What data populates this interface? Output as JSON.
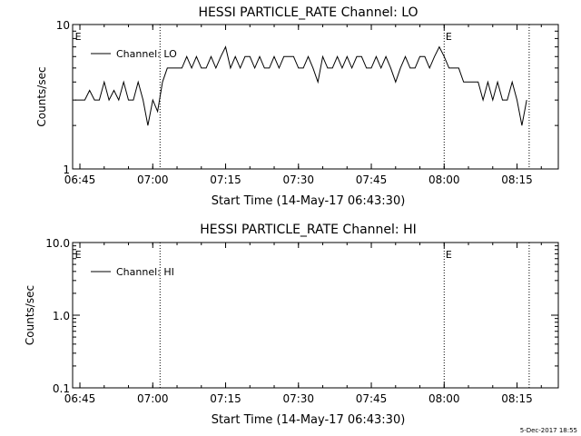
{
  "chart_data": [
    {
      "type": "line",
      "title": "HESSI PARTICLE_RATE Channel: LO",
      "xlabel": "Start Time (14-May-17 06:43:30)",
      "ylabel": "Counts/sec",
      "yscale": "log",
      "ylim": [
        1,
        10
      ],
      "y_tick_labels": [
        "1",
        "10"
      ],
      "xlim": [
        "06:43",
        "08:23"
      ],
      "x_tick_labels": [
        "06:45",
        "07:00",
        "07:15",
        "07:30",
        "07:45",
        "08:00",
        "08:15"
      ],
      "legend": "top-left",
      "grid": false,
      "series": [
        {
          "name": "Channel: LO",
          "color": "#000000",
          "x": [
            "06:44",
            "06:45",
            "06:46",
            "06:47",
            "06:48",
            "06:49",
            "06:50",
            "06:51",
            "06:52",
            "06:53",
            "06:54",
            "06:55",
            "06:56",
            "06:57",
            "06:58",
            "06:59",
            "07:00",
            "07:01",
            "07:02",
            "07:03",
            "07:04",
            "07:05",
            "07:06",
            "07:07",
            "07:08",
            "07:09",
            "07:10",
            "07:11",
            "07:12",
            "07:13",
            "07:14",
            "07:15",
            "07:16",
            "07:17",
            "07:18",
            "07:19",
            "07:20",
            "07:21",
            "07:22",
            "07:23",
            "07:24",
            "07:25",
            "07:26",
            "07:27",
            "07:28",
            "07:29",
            "07:30",
            "07:31",
            "07:32",
            "07:33",
            "07:34",
            "07:35",
            "07:36",
            "07:37",
            "07:38",
            "07:39",
            "07:40",
            "07:41",
            "07:42",
            "07:43",
            "07:44",
            "07:45",
            "07:46",
            "07:47",
            "07:48",
            "07:49",
            "07:50",
            "07:51",
            "07:52",
            "07:53",
            "07:54",
            "07:55",
            "07:56",
            "07:57",
            "07:58",
            "07:59",
            "08:00",
            "08:01",
            "08:02",
            "08:03",
            "08:04",
            "08:05",
            "08:06",
            "08:07",
            "08:08",
            "08:09",
            "08:10",
            "08:11",
            "08:12",
            "08:13",
            "08:14",
            "08:15",
            "08:16",
            "08:17"
          ],
          "values": [
            3,
            3,
            3,
            3.5,
            3,
            3,
            4,
            3,
            3.5,
            3,
            4,
            3,
            3,
            4,
            3,
            2,
            3,
            2.5,
            4,
            5,
            5,
            5,
            5,
            6,
            5,
            6,
            5,
            5,
            6,
            5,
            6,
            7,
            5,
            6,
            5,
            6,
            6,
            5,
            6,
            5,
            5,
            6,
            5,
            6,
            6,
            6,
            5,
            5,
            6,
            5,
            4,
            6,
            5,
            5,
            6,
            5,
            6,
            5,
            6,
            6,
            5,
            5,
            6,
            5,
            6,
            5,
            4,
            5,
            6,
            5,
            5,
            6,
            6,
            5,
            6,
            7,
            6,
            5,
            5,
            5,
            4,
            4,
            4,
            4,
            3,
            4,
            3,
            4,
            3,
            3,
            4,
            3,
            2,
            3
          ]
        }
      ],
      "annotations": [
        "E",
        "E"
      ]
    },
    {
      "type": "line",
      "title": "HESSI PARTICLE_RATE Channel: HI",
      "xlabel": "Start Time (14-May-17 06:43:30)",
      "ylabel": "Counts/sec",
      "yscale": "log",
      "ylim": [
        0.1,
        10
      ],
      "y_tick_labels": [
        "0.1",
        "1.0",
        "10.0"
      ],
      "xlim": [
        "06:43",
        "08:23"
      ],
      "x_tick_labels": [
        "06:45",
        "07:00",
        "07:15",
        "07:30",
        "07:45",
        "08:00",
        "08:15"
      ],
      "legend": "top-left",
      "grid": false,
      "series": [
        {
          "name": "Channel: HI",
          "color": "#000000",
          "x": [],
          "values": []
        }
      ],
      "annotations": [
        "E",
        "E"
      ]
    }
  ],
  "timestamp": "5-Dec-2017 18:55"
}
